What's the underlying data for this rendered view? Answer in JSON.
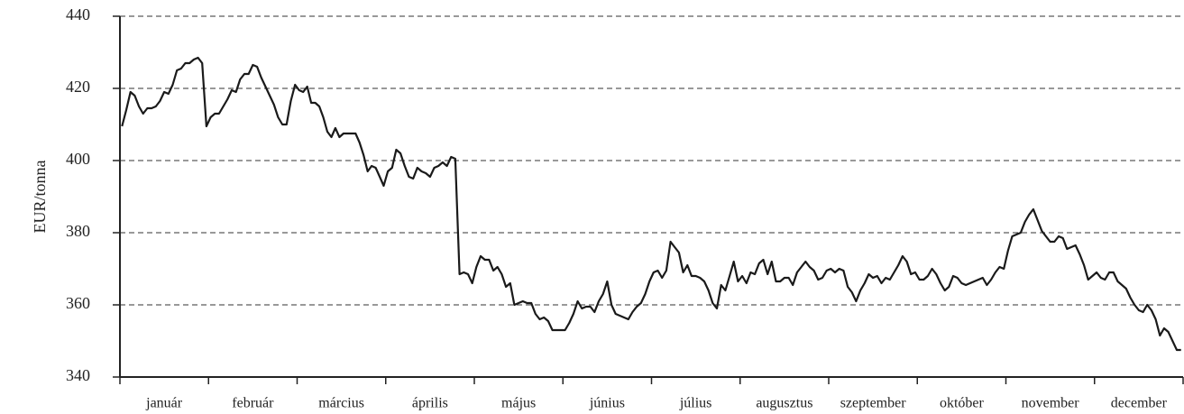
{
  "chart_data": {
    "type": "line",
    "ylabel": "EUR/tonna",
    "categories": [
      "január",
      "február",
      "március",
      "április",
      "május",
      "június",
      "július",
      "augusztus",
      "szeptember",
      "október",
      "november",
      "december"
    ],
    "values": [
      [
        409.5,
        414,
        419,
        418,
        415,
        413,
        414.5,
        414.5,
        415,
        416.5,
        419,
        418.5,
        421,
        425,
        425.5,
        427,
        427,
        428,
        428.5,
        427,
        409.5
      ],
      [
        412,
        413,
        413,
        415,
        417,
        419.5,
        419,
        422.5,
        424,
        424,
        426.5,
        426,
        423,
        420.5,
        418,
        415.5,
        412,
        410,
        410,
        416.5,
        421
      ],
      [
        419.5,
        419,
        420.5,
        416,
        416,
        415,
        412,
        408,
        406.5,
        409,
        406.5,
        407.5,
        407.5,
        407.5,
        407.5,
        405,
        401.5,
        397,
        398.5,
        398,
        395.5,
        393
      ],
      [
        397,
        398,
        403,
        402,
        398.5,
        395.5,
        395,
        398,
        397,
        396.5,
        395.5,
        398,
        398.5,
        399.5,
        398.5,
        401,
        400.5,
        368.5,
        369,
        368.5,
        366
      ],
      [
        370.5,
        373.5,
        372.5,
        372.5,
        369.5,
        370.5,
        368.5,
        365,
        366,
        360,
        360.5,
        361,
        360.5,
        360.5,
        357.5,
        356,
        356.5,
        355.5,
        353,
        353,
        353
      ],
      [
        353,
        355,
        357.5,
        361,
        359,
        359.5,
        359.5,
        358,
        361,
        363,
        366.5,
        360,
        357.5,
        357,
        356.5,
        356,
        358,
        359.5,
        360.5,
        363,
        366.5
      ],
      [
        369,
        369.5,
        367.5,
        369.5,
        377.5,
        376,
        374.5,
        369,
        371,
        368,
        368,
        367.5,
        366.5,
        364,
        360.5,
        359,
        365.5,
        364,
        368,
        372,
        366.5
      ],
      [
        368,
        366,
        369,
        368.5,
        371.5,
        372.5,
        368.5,
        372,
        366.5,
        366.5,
        367.5,
        367.5,
        365.5,
        369,
        370.5,
        372,
        370.5,
        369.5,
        367,
        367.5,
        369.5
      ],
      [
        370,
        369,
        370,
        369.5,
        365,
        363.5,
        361,
        364,
        366,
        368.5,
        367.5,
        368,
        366,
        367.5,
        367,
        369,
        371,
        373.5,
        372,
        368.5,
        369
      ],
      [
        367,
        367,
        368,
        370,
        368.5,
        366,
        364,
        365,
        368,
        367.5,
        366,
        365.5,
        366,
        366.5,
        367,
        367.5,
        365.5,
        367,
        369,
        370.5,
        370
      ],
      [
        375,
        379,
        379.5,
        380,
        383,
        385,
        386.5,
        383.5,
        380.5,
        379,
        377.5,
        377.5,
        379,
        378.5,
        375.5,
        376,
        376.5,
        374,
        371,
        367,
        368
      ],
      [
        369,
        367.5,
        367,
        369,
        369,
        366.5,
        365.5,
        364.5,
        362,
        360,
        358.5,
        358,
        360,
        358.5,
        356,
        351.5,
        353.5,
        352.5,
        350,
        347.5,
        347.5
      ]
    ],
    "color": "#1a1a1a",
    "ylim": [
      340,
      440
    ],
    "yticks": [
      340,
      360,
      380,
      400,
      420,
      440
    ],
    "grid": true
  }
}
